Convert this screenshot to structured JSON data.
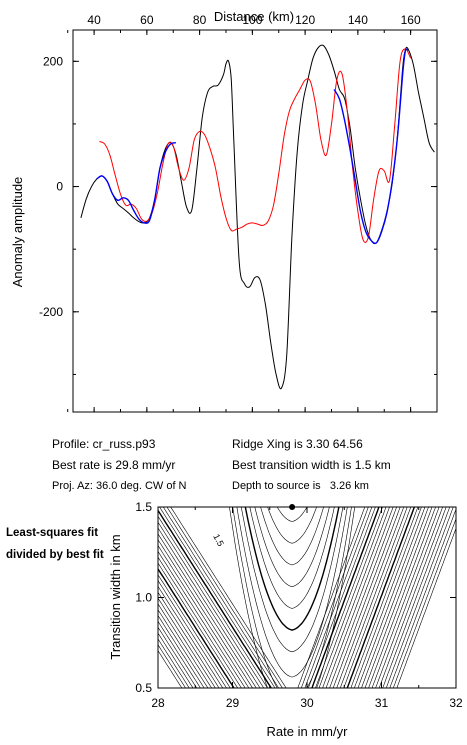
{
  "chart_data": [
    {
      "type": "line",
      "xlabel": "Distance (km)",
      "ylabel": "Anomaly amplitude",
      "xlim": [
        32,
        170
      ],
      "ylim": [
        -360,
        250
      ],
      "xticks": [
        40,
        60,
        80,
        100,
        120,
        140,
        160
      ],
      "yticks": [
        200,
        0,
        -200
      ],
      "grid": false,
      "series": [
        {
          "color": "#000000",
          "x": [
            35,
            37,
            39,
            41,
            43,
            45,
            47,
            49,
            51,
            53,
            55,
            57,
            59,
            61,
            63,
            65,
            67,
            69,
            71,
            73,
            75,
            77,
            79,
            81,
            83,
            85,
            87,
            89,
            90,
            91,
            92,
            93,
            95,
            97,
            99,
            101,
            103,
            105,
            107,
            109,
            111,
            113,
            115,
            117,
            119,
            121,
            123,
            125,
            127,
            129,
            131,
            133,
            135,
            137,
            139,
            141,
            143,
            145,
            147,
            149,
            151,
            153,
            155,
            157,
            158,
            159,
            161,
            163,
            165,
            167,
            169
          ],
          "y": [
            -50,
            -20,
            0,
            12,
            17,
            8,
            -12,
            -28,
            -35,
            -42,
            -50,
            -56,
            -58,
            -50,
            -20,
            30,
            60,
            70,
            52,
            10,
            -32,
            -38,
            30,
            110,
            150,
            160,
            162,
            178,
            196,
            200,
            170,
            70,
            -120,
            -155,
            -160,
            -145,
            -150,
            -190,
            -250,
            -300,
            -322,
            -270,
            -80,
            55,
            130,
            170,
            205,
            222,
            225,
            210,
            185,
            155,
            140,
            95,
            30,
            -20,
            -62,
            -86,
            -90,
            -70,
            -40,
            5,
            80,
            190,
            218,
            220,
            195,
            150,
            110,
            70,
            55
          ]
        },
        {
          "color": "#ff0000",
          "x": [
            42,
            44,
            46,
            48,
            50,
            52,
            54,
            56,
            58,
            60,
            62,
            64,
            66,
            68,
            70,
            72,
            74,
            76,
            78,
            80,
            82,
            84,
            86,
            88,
            90,
            92,
            94,
            96,
            98,
            100,
            102,
            104,
            106,
            108,
            110,
            112,
            114,
            116,
            118,
            120,
            122,
            124,
            126,
            128,
            130,
            132,
            134,
            136,
            138,
            140,
            142,
            144,
            146,
            148,
            150,
            152,
            154,
            156,
            158,
            160
          ],
          "y": [
            72,
            68,
            50,
            18,
            -12,
            -30,
            -28,
            -35,
            -52,
            -55,
            -42,
            -10,
            35,
            68,
            65,
            30,
            10,
            30,
            75,
            88,
            82,
            60,
            30,
            -15,
            -50,
            -70,
            -68,
            -65,
            -60,
            -58,
            -60,
            -62,
            -55,
            -30,
            20,
            80,
            120,
            140,
            155,
            170,
            168,
            130,
            75,
            50,
            100,
            170,
            180,
            120,
            30,
            -40,
            -85,
            -80,
            -20,
            25,
            25,
            10,
            100,
            200,
            220,
            205
          ]
        },
        {
          "color": "#0000ff",
          "x": [
            41,
            43,
            45,
            47,
            49,
            51,
            53,
            55,
            57,
            59,
            61,
            63,
            65,
            67,
            69,
            71
          ],
          "y": [
            12,
            17,
            8,
            -12,
            -22,
            -18,
            -22,
            -38,
            -52,
            -58,
            -54,
            -20,
            30,
            55,
            68,
            70
          ]
        },
        {
          "color": "#0000ff",
          "x": [
            131,
            133,
            135,
            137,
            139,
            141,
            143,
            145,
            147,
            149,
            151,
            153,
            155,
            157,
            158,
            159
          ],
          "y": [
            155,
            140,
            105,
            60,
            10,
            -40,
            -72,
            -86,
            -90,
            -72,
            -42,
            8,
            78,
            180,
            216,
            218
          ]
        }
      ]
    },
    {
      "type": "line",
      "xlabel": "Rate in mm/yr",
      "ylabel": "Transition width in km",
      "xlim": [
        28,
        32
      ],
      "ylim": [
        0.5,
        1.5
      ],
      "xticks": [
        28,
        29,
        30,
        31,
        32
      ],
      "yticks": [
        0.5,
        1.0,
        1.5
      ],
      "grid": false,
      "minimum_point": {
        "x": 29.8,
        "y": 1.5
      },
      "contour_label": "1.5",
      "contours": {
        "min_rate": 29.8,
        "base_width": 0.5
      }
    }
  ],
  "info": {
    "profile": "Profile: cr_russ.p93",
    "best_rate": "Best rate is 29.8 mm/yr",
    "proj_az": "Proj. Az: 36.0 deg. CW of N",
    "ridge_xing": "Ridge Xing is 3.30 64.56",
    "best_width": "Best transition width is 1.5 km",
    "depth": "Depth to source is   3.26 km"
  },
  "side_note": "Least-squares fit divided by best fit"
}
